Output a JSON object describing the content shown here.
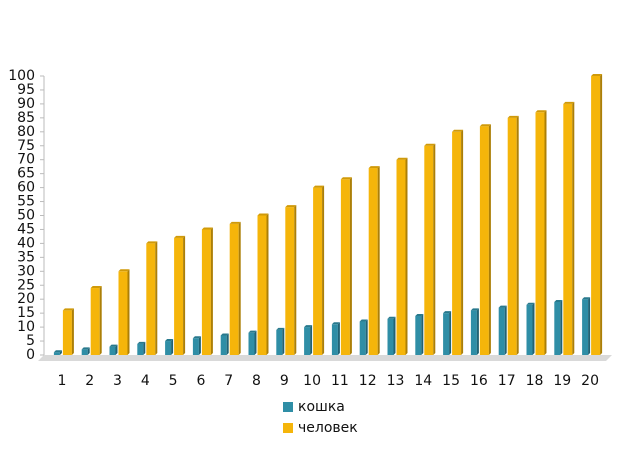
{
  "chart_data": {
    "type": "bar",
    "categories": [
      1,
      2,
      3,
      4,
      5,
      6,
      7,
      8,
      9,
      10,
      11,
      12,
      13,
      14,
      15,
      16,
      17,
      18,
      19,
      20
    ],
    "series": [
      {
        "name": "кошка",
        "color": "#2f8ea6",
        "values": [
          1,
          2,
          3,
          4,
          5,
          6,
          7,
          8,
          9,
          10,
          11,
          12,
          13,
          14,
          15,
          16,
          17,
          18,
          19,
          20
        ]
      },
      {
        "name": "человек",
        "color": "#f5b50a",
        "values": [
          16,
          24,
          30,
          40,
          42,
          45,
          47,
          50,
          53,
          60,
          63,
          67,
          70,
          75,
          80,
          82,
          85,
          87,
          90,
          100
        ]
      }
    ],
    "ylim": [
      0,
      100
    ],
    "yticks": [
      0,
      5,
      10,
      15,
      20,
      25,
      30,
      35,
      40,
      45,
      50,
      55,
      60,
      65,
      70,
      75,
      80,
      85,
      90,
      95,
      100
    ],
    "grid": false,
    "legend": "bottom"
  }
}
